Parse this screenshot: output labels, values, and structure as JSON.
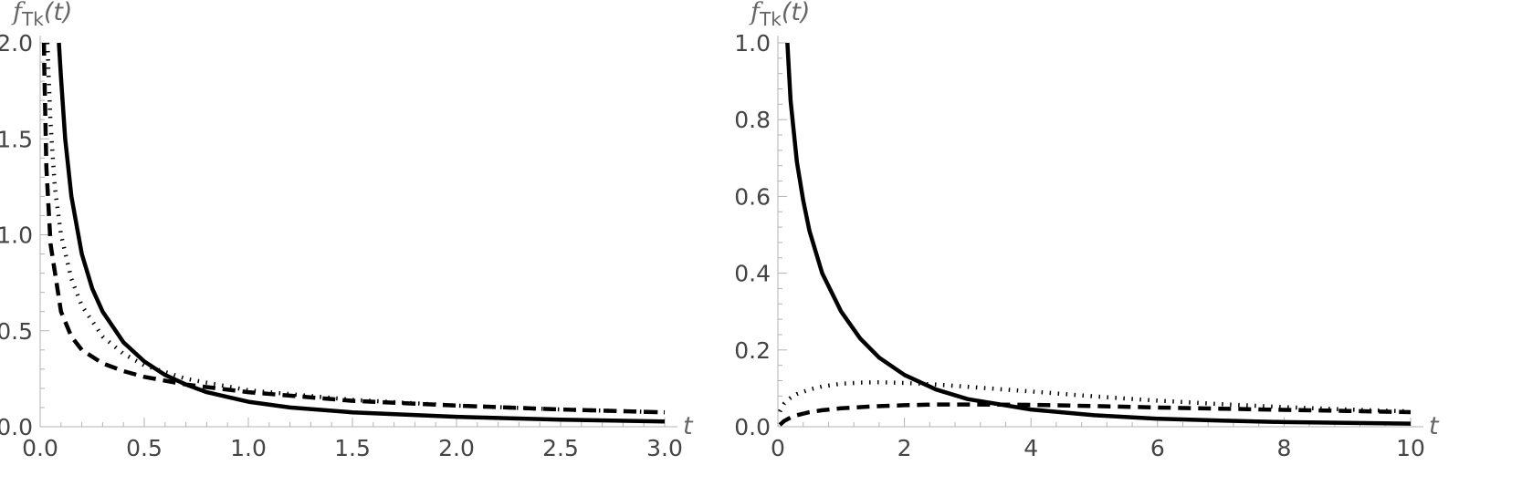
{
  "chart_data": [
    {
      "type": "line",
      "title": "",
      "ylabel": {
        "base": "f",
        "subscript": "Tk",
        "arg": "(t)"
      },
      "xlabel": "t",
      "xlim": [
        0,
        3.0
      ],
      "ylim": [
        0,
        2.0
      ],
      "xticks": [
        "0.0",
        "0.5",
        "1.0",
        "1.5",
        "2.0",
        "2.5",
        "3.0"
      ],
      "yticks": [
        "0.0",
        "0.5",
        "1.0",
        "1.5",
        "2.0"
      ],
      "grid": false,
      "series": [
        {
          "style": "solid",
          "x": [
            0.09,
            0.1,
            0.12,
            0.15,
            0.2,
            0.25,
            0.3,
            0.4,
            0.5,
            0.6,
            0.7,
            0.8,
            1.0,
            1.2,
            1.5,
            2.0,
            2.5,
            3.0
          ],
          "y": [
            2.0,
            1.82,
            1.5,
            1.2,
            0.9,
            0.72,
            0.6,
            0.44,
            0.34,
            0.27,
            0.22,
            0.18,
            0.13,
            0.1,
            0.075,
            0.052,
            0.037,
            0.027
          ]
        },
        {
          "style": "dotted",
          "x": [
            0.035,
            0.04,
            0.05,
            0.07,
            0.1,
            0.15,
            0.2,
            0.3,
            0.4,
            0.5,
            0.7,
            1.0,
            1.5,
            2.0,
            2.5,
            3.0
          ],
          "y": [
            2.0,
            1.85,
            1.58,
            1.25,
            1.0,
            0.77,
            0.63,
            0.47,
            0.38,
            0.32,
            0.25,
            0.19,
            0.14,
            0.11,
            0.09,
            0.075
          ]
        },
        {
          "style": "dashed",
          "x": [
            0.018,
            0.02,
            0.03,
            0.05,
            0.1,
            0.15,
            0.2,
            0.3,
            0.4,
            0.5,
            0.7,
            1.0,
            1.5,
            2.0,
            2.5,
            3.0
          ],
          "y": [
            2.0,
            1.85,
            1.35,
            0.95,
            0.6,
            0.47,
            0.4,
            0.33,
            0.29,
            0.26,
            0.22,
            0.18,
            0.135,
            0.11,
            0.09,
            0.075
          ]
        }
      ]
    },
    {
      "type": "line",
      "title": "",
      "ylabel": {
        "base": "f",
        "subscript": "Tk",
        "arg": "(t)"
      },
      "xlabel": "t",
      "xlim": [
        0,
        10
      ],
      "ylim": [
        0,
        1.0
      ],
      "xticks": [
        "0",
        "2",
        "4",
        "6",
        "8",
        "10"
      ],
      "yticks": [
        "0.0",
        "0.2",
        "0.4",
        "0.6",
        "0.8",
        "1.0"
      ],
      "grid": false,
      "series": [
        {
          "style": "solid",
          "x": [
            0.15,
            0.2,
            0.3,
            0.4,
            0.5,
            0.7,
            1.0,
            1.3,
            1.6,
            2.0,
            2.5,
            3.0,
            4.0,
            5.0,
            6.0,
            7.0,
            8.0,
            9.0,
            10.0
          ],
          "y": [
            1.0,
            0.85,
            0.69,
            0.59,
            0.51,
            0.4,
            0.3,
            0.23,
            0.18,
            0.135,
            0.097,
            0.072,
            0.045,
            0.03,
            0.021,
            0.016,
            0.012,
            0.01,
            0.008
          ]
        },
        {
          "style": "dotted",
          "x": [
            0.03,
            0.1,
            0.2,
            0.3,
            0.5,
            0.7,
            1.0,
            1.3,
            1.6,
            2.0,
            2.5,
            3.0,
            4.0,
            5.0,
            6.0,
            7.0,
            8.0,
            9.0,
            10.0
          ],
          "y": [
            0.04,
            0.06,
            0.075,
            0.085,
            0.097,
            0.105,
            0.112,
            0.115,
            0.116,
            0.114,
            0.11,
            0.104,
            0.092,
            0.079,
            0.068,
            0.059,
            0.051,
            0.045,
            0.04
          ]
        },
        {
          "style": "dashed",
          "x": [
            0.03,
            0.1,
            0.2,
            0.3,
            0.5,
            0.7,
            1.0,
            1.5,
            2.0,
            2.5,
            3.0,
            4.0,
            5.0,
            6.0,
            7.0,
            8.0,
            9.0,
            10.0
          ],
          "y": [
            0.005,
            0.015,
            0.024,
            0.03,
            0.038,
            0.043,
            0.048,
            0.053,
            0.056,
            0.058,
            0.058,
            0.057,
            0.054,
            0.05,
            0.047,
            0.044,
            0.041,
            0.038
          ]
        }
      ]
    }
  ]
}
